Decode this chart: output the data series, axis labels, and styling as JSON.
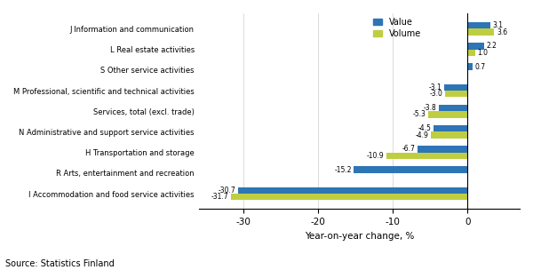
{
  "categories": [
    "I Accommodation and food service activities",
    "R Arts, entertainment and recreation",
    "H Transportation and storage",
    "N Administrative and support service activities",
    "Services, total (excl. trade)",
    "M Professional, scientific and technical activities",
    "S Other service activities",
    "L Real estate activities",
    "J Information and communication"
  ],
  "value": [
    -30.7,
    -15.2,
    -6.7,
    -4.5,
    -3.8,
    -3.1,
    0.7,
    2.2,
    3.1
  ],
  "volume": [
    -31.7,
    null,
    -10.9,
    -4.9,
    -5.3,
    -3.0,
    null,
    1.0,
    3.6
  ],
  "value_labels": [
    "-30.7",
    "-15.2",
    "-6.7",
    "-4.5",
    "-3.8",
    "-3.1",
    "0.7",
    "2.2",
    "3.1"
  ],
  "volume_labels": [
    "-31.7",
    null,
    "-10.9",
    "-4.9",
    "-5.3",
    "-3.0",
    null,
    "1.0",
    "3.6"
  ],
  "value_color": "#2E75B6",
  "volume_color": "#BFCE41",
  "xlabel": "Year-on-year change, %",
  "xlim": [
    -36,
    7
  ],
  "xticks": [
    -30,
    -20,
    -10,
    0
  ],
  "source": "Source: Statistics Finland",
  "legend_value": "Value",
  "legend_volume": "Volume"
}
